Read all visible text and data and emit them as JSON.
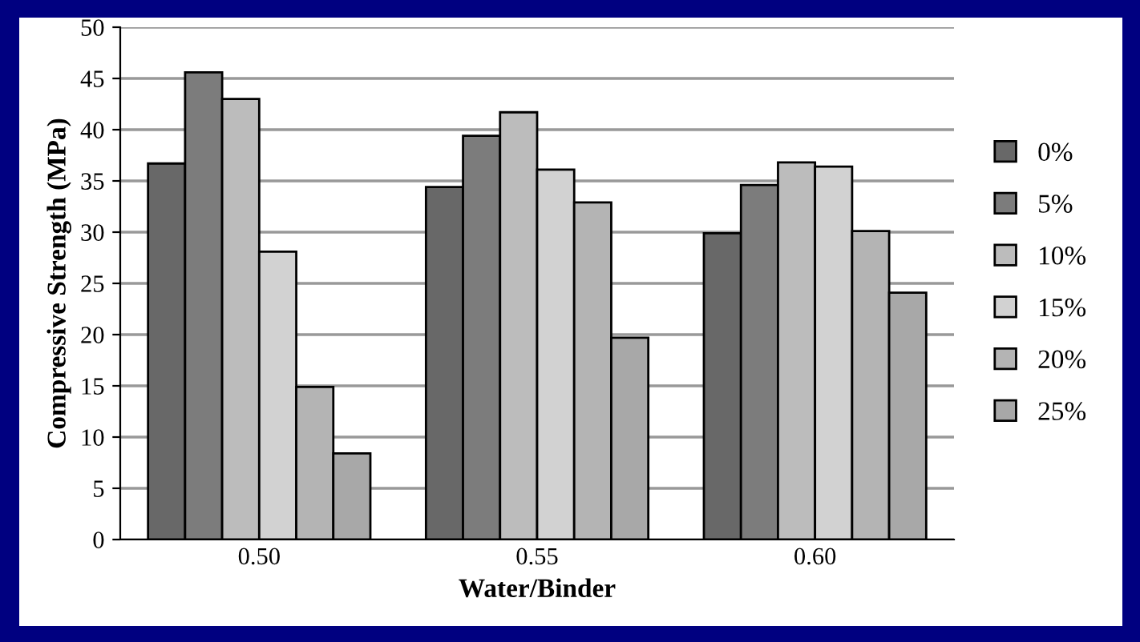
{
  "chart_data": {
    "type": "bar",
    "xlabel": "Water/Binder",
    "ylabel": "Compressive Strength (MPa)",
    "categories": [
      "0.50",
      "0.55",
      "0.60"
    ],
    "series": [
      {
        "name": "0%",
        "color": "#686868",
        "values": [
          36.7,
          34.4,
          29.9
        ]
      },
      {
        "name": "5%",
        "color": "#7c7c7c",
        "values": [
          45.6,
          39.4,
          34.6
        ]
      },
      {
        "name": "10%",
        "color": "#bcbcbc",
        "values": [
          43.0,
          41.7,
          36.8
        ]
      },
      {
        "name": "15%",
        "color": "#d2d2d2",
        "values": [
          28.1,
          36.1,
          36.4
        ]
      },
      {
        "name": "20%",
        "color": "#b4b4b4",
        "values": [
          14.9,
          32.9,
          30.1
        ]
      },
      {
        "name": "25%",
        "color": "#a8a8a8",
        "values": [
          8.4,
          19.7,
          24.1
        ]
      }
    ],
    "ylim": [
      0,
      50
    ],
    "yticks": [
      0,
      5,
      10,
      15,
      20,
      25,
      30,
      35,
      40,
      45,
      50
    ],
    "grid": "y",
    "legend": "right"
  }
}
